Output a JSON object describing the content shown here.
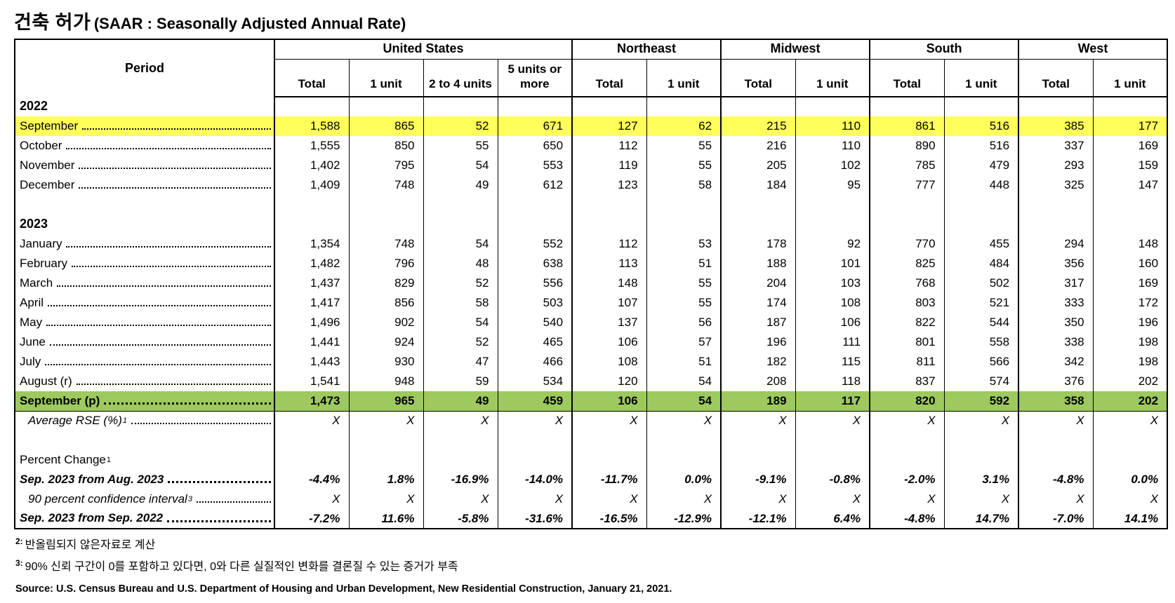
{
  "title": {
    "ko": "건축 허가",
    "en": "(SAAR : Seasonally Adjusted Annual Rate)"
  },
  "colors": {
    "highlight_yellow": "#ffff5c",
    "highlight_green": "#9dc95e"
  },
  "table": {
    "period_header": "Period",
    "groups": [
      {
        "label": "United States",
        "span": 4
      },
      {
        "label": "Northeast",
        "span": 2
      },
      {
        "label": "Midwest",
        "span": 2
      },
      {
        "label": "South",
        "span": 2
      },
      {
        "label": "West",
        "span": 2
      }
    ],
    "sub_headers": [
      "Total",
      "1 unit",
      "2 to 4 units",
      "5 units or more",
      "Total",
      "1 unit",
      "Total",
      "1 unit",
      "Total",
      "1 unit",
      "Total",
      "1 unit"
    ],
    "rows": [
      {
        "type": "year",
        "label": "2022"
      },
      {
        "type": "data",
        "style": "yellow",
        "label": "September",
        "values": [
          "1,588",
          "865",
          "52",
          "671",
          "127",
          "62",
          "215",
          "110",
          "861",
          "516",
          "385",
          "177"
        ]
      },
      {
        "type": "data",
        "label": "October",
        "values": [
          "1,555",
          "850",
          "55",
          "650",
          "112",
          "55",
          "216",
          "110",
          "890",
          "516",
          "337",
          "169"
        ]
      },
      {
        "type": "data",
        "label": "November",
        "values": [
          "1,402",
          "795",
          "54",
          "553",
          "119",
          "55",
          "205",
          "102",
          "785",
          "479",
          "293",
          "159"
        ]
      },
      {
        "type": "data",
        "label": "December",
        "values": [
          "1,409",
          "748",
          "49",
          "612",
          "123",
          "58",
          "184",
          "95",
          "777",
          "448",
          "325",
          "147"
        ]
      },
      {
        "type": "spacer"
      },
      {
        "type": "year",
        "label": "2023"
      },
      {
        "type": "data",
        "label": "January",
        "values": [
          "1,354",
          "748",
          "54",
          "552",
          "112",
          "53",
          "178",
          "92",
          "770",
          "455",
          "294",
          "148"
        ]
      },
      {
        "type": "data",
        "label": "February",
        "values": [
          "1,482",
          "796",
          "48",
          "638",
          "113",
          "51",
          "188",
          "101",
          "825",
          "484",
          "356",
          "160"
        ]
      },
      {
        "type": "data",
        "label": "March",
        "values": [
          "1,437",
          "829",
          "52",
          "556",
          "148",
          "55",
          "204",
          "103",
          "768",
          "502",
          "317",
          "169"
        ]
      },
      {
        "type": "data",
        "label": "April",
        "values": [
          "1,417",
          "856",
          "58",
          "503",
          "107",
          "55",
          "174",
          "108",
          "803",
          "521",
          "333",
          "172"
        ]
      },
      {
        "type": "data",
        "label": "May",
        "values": [
          "1,496",
          "902",
          "54",
          "540",
          "137",
          "56",
          "187",
          "106",
          "822",
          "544",
          "350",
          "196"
        ]
      },
      {
        "type": "data",
        "label": "June",
        "values": [
          "1,441",
          "924",
          "52",
          "465",
          "106",
          "57",
          "196",
          "111",
          "801",
          "558",
          "338",
          "198"
        ]
      },
      {
        "type": "data",
        "label": "July",
        "values": [
          "1,443",
          "930",
          "47",
          "466",
          "108",
          "51",
          "182",
          "115",
          "811",
          "566",
          "342",
          "198"
        ]
      },
      {
        "type": "data",
        "label": "August (r)",
        "values": [
          "1,541",
          "948",
          "59",
          "534",
          "120",
          "54",
          "208",
          "118",
          "837",
          "574",
          "376",
          "202"
        ]
      },
      {
        "type": "data",
        "style": "green",
        "label": "September (p)",
        "values": [
          "1,473",
          "965",
          "49",
          "459",
          "106",
          "54",
          "189",
          "117",
          "820",
          "592",
          "358",
          "202"
        ]
      },
      {
        "type": "data",
        "style": "italic",
        "label": "Average RSE (%)",
        "sup": "1",
        "indent": true,
        "values": [
          "X",
          "X",
          "X",
          "X",
          "X",
          "X",
          "X",
          "X",
          "X",
          "X",
          "X",
          "X"
        ]
      },
      {
        "type": "spacer"
      },
      {
        "type": "label",
        "label": "Percent Change",
        "sup": "1"
      },
      {
        "type": "data",
        "style": "bold-italic",
        "label": "Sep. 2023 from Aug. 2023",
        "values": [
          "-4.4%",
          "1.8%",
          "-16.9%",
          "-14.0%",
          "-11.7%",
          "0.0%",
          "-9.1%",
          "-0.8%",
          "-2.0%",
          "3.1%",
          "-4.8%",
          "0.0%"
        ]
      },
      {
        "type": "data",
        "style": "italic",
        "label": "90 percent confidence interval",
        "sup": "3",
        "indent": true,
        "values": [
          "X",
          "X",
          "X",
          "X",
          "X",
          "X",
          "X",
          "X",
          "X",
          "X",
          "X",
          "X"
        ]
      },
      {
        "type": "data",
        "style": "bold-italic",
        "label": "Sep. 2023 from Sep. 2022",
        "values": [
          "-7.2%",
          "11.6%",
          "-5.8%",
          "-31.6%",
          "-16.5%",
          "-12.9%",
          "-12.1%",
          "6.4%",
          "-4.8%",
          "14.7%",
          "-7.0%",
          "14.1%"
        ]
      }
    ]
  },
  "footnotes": [
    {
      "sup": "2:",
      "text": "반올림되지 않은자료로 계산"
    },
    {
      "sup": "3:",
      "text": "90% 신뢰 구간이 0를 포함하고 있다면, 0와 다른 실질적인 변화를 결론질 수 있는 증거가 부족"
    }
  ],
  "source": "Source: U.S. Census Bureau and U.S. Department of Housing and Urban Development, New Residential Construction, January 21, 2021."
}
